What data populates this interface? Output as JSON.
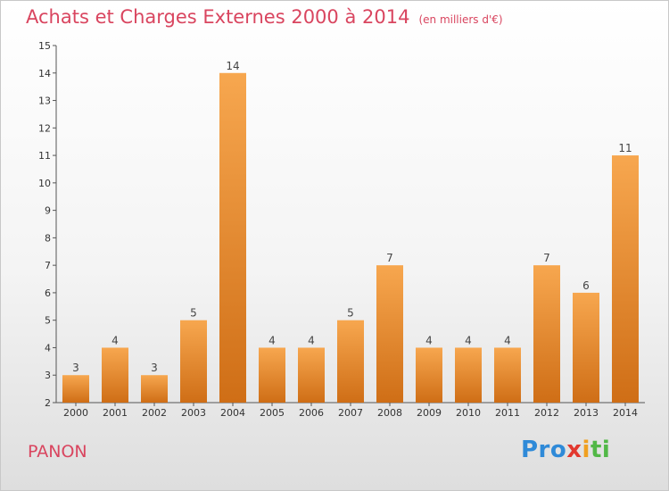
{
  "header": {
    "title": "Achats et Charges Externes 2000 à 2014",
    "unit": "(en milliers d'€)"
  },
  "footer": {
    "place": "PANON",
    "logo": [
      "Pro",
      "x",
      "i",
      "ti"
    ]
  },
  "colors": {
    "title": "#d9455f",
    "bar_top": "#f7a74f",
    "bar_bottom": "#cf6e16"
  },
  "chart_data": {
    "type": "bar",
    "categories": [
      "2000",
      "2001",
      "2002",
      "2003",
      "2004",
      "2005",
      "2006",
      "2007",
      "2008",
      "2009",
      "2010",
      "2011",
      "2012",
      "2013",
      "2014"
    ],
    "values": [
      3,
      4,
      3,
      5,
      14,
      4,
      4,
      5,
      7,
      4,
      4,
      4,
      7,
      6,
      11
    ],
    "ylim": [
      2,
      15
    ],
    "yticks": [
      2,
      3,
      4,
      5,
      6,
      7,
      8,
      9,
      10,
      11,
      12,
      13,
      14,
      15
    ],
    "title": "Achats et Charges Externes 2000 à 2014",
    "unit": "(en milliers d'€)",
    "grid": false,
    "legend": "none"
  }
}
